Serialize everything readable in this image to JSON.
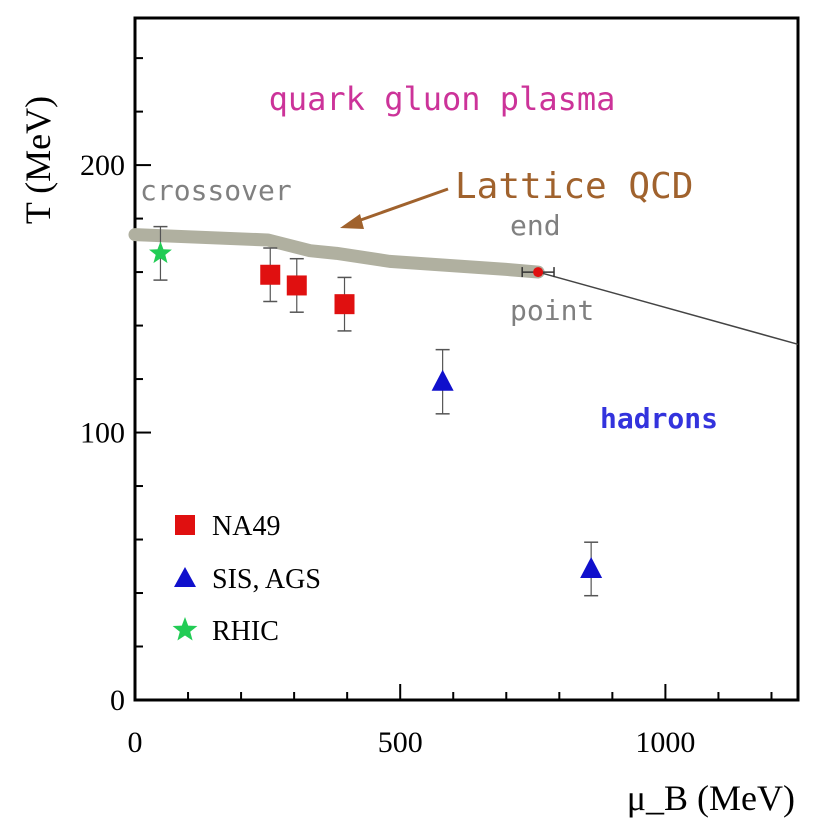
{
  "chart_data": {
    "type": "scatter",
    "title": "",
    "xlabel": "μ_B (MeV)",
    "ylabel": "T (MeV)",
    "xlim": [
      0,
      1250
    ],
    "ylim": [
      0,
      255
    ],
    "xticks": [
      0,
      500,
      1000
    ],
    "yticks": [
      0,
      100,
      200
    ],
    "series": [
      {
        "name": "NA49",
        "marker": "square",
        "color": "#e01010",
        "points": [
          {
            "x": 255,
            "y": 159,
            "yerr": 10
          },
          {
            "x": 305,
            "y": 155,
            "yerr": 10
          },
          {
            "x": 395,
            "y": 148,
            "yerr": 10
          }
        ]
      },
      {
        "name": "SIS, AGS",
        "marker": "triangle",
        "color": "#1010cc",
        "points": [
          {
            "x": 580,
            "y": 119,
            "yerr": 12
          },
          {
            "x": 860,
            "y": 49,
            "yerr": 10
          }
        ]
      },
      {
        "name": "RHIC",
        "marker": "star",
        "color": "#22cc55",
        "points": [
          {
            "x": 48,
            "y": 167,
            "yerr": 10
          }
        ]
      }
    ],
    "lattice_band": {
      "name": "Lattice QCD",
      "points": [
        [
          0,
          174
        ],
        [
          250,
          172
        ],
        [
          330,
          168
        ],
        [
          380,
          167
        ],
        [
          480,
          164
        ],
        [
          700,
          161
        ],
        [
          760,
          160
        ]
      ],
      "color": "#b0b0a0"
    },
    "transition_line": {
      "points": [
        [
          760,
          160
        ],
        [
          1250,
          133
        ]
      ],
      "color": "#444444"
    },
    "end_point": {
      "x": 760,
      "y": 160,
      "xerr": 30,
      "color": "#e01010"
    },
    "annotations": {
      "qgp": "quark gluon plasma",
      "crossover": "crossover",
      "lattice": "Lattice QCD",
      "end": "end",
      "point": "point",
      "hadrons": "hadrons"
    },
    "legend": [
      {
        "label": "NA49",
        "marker": "square",
        "color": "#e01010"
      },
      {
        "label": "SIS, AGS",
        "marker": "triangle",
        "color": "#1010cc"
      },
      {
        "label": "RHIC",
        "marker": "star",
        "color": "#22cc55"
      }
    ],
    "colors": {
      "qgp": "#cc3399",
      "annot_gray": "#808080",
      "lattice_label": "#a0622d",
      "hadrons": "#3333dd"
    }
  }
}
